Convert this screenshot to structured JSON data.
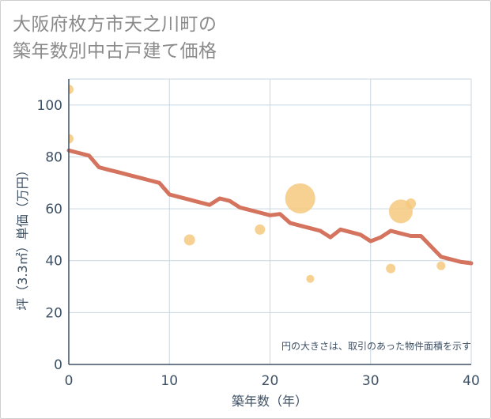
{
  "title_lines": [
    "大阪府枚方市天之川町の",
    "築年数別中古戸建て価格"
  ],
  "chart_data": {
    "type": "scatter+line",
    "xlabel": "築年数（年）",
    "ylabel": "坪（3.3㎡）単価（万円）",
    "xlim": [
      0,
      40
    ],
    "ylim": [
      0,
      110
    ],
    "xticks": [
      0,
      10,
      20,
      30,
      40
    ],
    "yticks": [
      0,
      20,
      40,
      60,
      80,
      100
    ],
    "grid": true,
    "note": "円の大きさは、取引のあった物件面積を示す",
    "colors": {
      "line": "#d4735e",
      "bubble": "#f5c97e",
      "grid": "#c8d7e1",
      "axis": "#3f5165"
    },
    "trend_line": {
      "x": [
        0,
        1,
        2,
        3,
        4,
        5,
        6,
        7,
        8,
        9,
        10,
        11,
        12,
        13,
        14,
        15,
        16,
        17,
        18,
        19,
        20,
        21,
        22,
        23,
        24,
        25,
        26,
        27,
        28,
        29,
        30,
        31,
        32,
        33,
        34,
        35,
        36,
        37,
        38,
        39,
        40
      ],
      "y": [
        82.5,
        81.5,
        80.5,
        76,
        75,
        74,
        73,
        72,
        71,
        70,
        65.5,
        64.5,
        63.5,
        62.5,
        61.5,
        64,
        63,
        60.5,
        59.5,
        58.5,
        57.5,
        58,
        54.5,
        53.5,
        52.5,
        51.5,
        49,
        52,
        51,
        50,
        47.5,
        49,
        51.5,
        50.5,
        49.5,
        49.5,
        45.5,
        41.5,
        40.5,
        39.5,
        39
      ]
    },
    "bubbles": [
      {
        "x": 0,
        "y": 106,
        "size": 6
      },
      {
        "x": 0,
        "y": 87,
        "size": 6
      },
      {
        "x": 12,
        "y": 48,
        "size": 7
      },
      {
        "x": 19,
        "y": 52,
        "size": 6.5
      },
      {
        "x": 23,
        "y": 64,
        "size": 19
      },
      {
        "x": 24,
        "y": 33,
        "size": 5
      },
      {
        "x": 32,
        "y": 37,
        "size": 6
      },
      {
        "x": 33,
        "y": 59,
        "size": 15
      },
      {
        "x": 34,
        "y": 62,
        "size": 6.5
      },
      {
        "x": 37,
        "y": 38,
        "size": 5.5
      }
    ]
  }
}
